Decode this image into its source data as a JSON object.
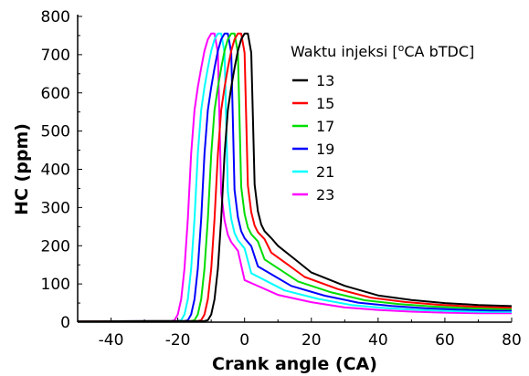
{
  "chart_data": {
    "type": "line",
    "title": "",
    "xlabel": "Crank angle (CA)",
    "ylabel": "HC (ppm)",
    "xlim": [
      -50,
      80
    ],
    "ylim": [
      0,
      800
    ],
    "xticks": [
      -40,
      -20,
      0,
      20,
      40,
      60,
      80
    ],
    "xtick_labels": [
      "-40",
      "-20",
      "0",
      "20",
      "40",
      "60",
      "80"
    ],
    "yticks": [
      0,
      100,
      200,
      300,
      400,
      500,
      600,
      700,
      800
    ],
    "ytick_labels": [
      "0",
      "100",
      "200",
      "300",
      "400",
      "500",
      "600",
      "700",
      "800"
    ],
    "grid": false,
    "legend": {
      "title": "Waktu injeksi [",
      "title_sup": "o",
      "title_end": "CA bTDC]",
      "position": "top-right"
    },
    "series": [
      {
        "name": "13",
        "color": "#000000",
        "shift": 0
      },
      {
        "name": "15",
        "color": "#ff0000",
        "shift": -2
      },
      {
        "name": "17",
        "color": "#00dd00",
        "shift": -4
      },
      {
        "name": "19",
        "color": "#0000ff",
        "shift": -6
      },
      {
        "name": "21",
        "color": "#00ffff",
        "shift": -8
      },
      {
        "name": "23",
        "color": "#ff00ff",
        "shift": -10
      }
    ],
    "base_curve": {
      "x": [
        -50,
        -12,
        -11,
        -10,
        -9,
        -8,
        -7,
        -6,
        -5,
        -4,
        -3,
        -2,
        -1,
        0,
        1,
        2,
        3,
        4,
        5,
        6,
        8,
        10,
        15,
        20,
        30,
        40,
        50,
        60,
        70,
        80
      ],
      "y": [
        2,
        3,
        5,
        20,
        60,
        140,
        270,
        440,
        555,
        615,
        665,
        710,
        740,
        755,
        755,
        705,
        360,
        290,
        255,
        238,
        220,
        200,
        165,
        130,
        95,
        70,
        58,
        50,
        45,
        42
      ]
    },
    "tail_offsets": [
      0,
      -2,
      -6,
      -14,
      -18,
      -22
    ]
  }
}
